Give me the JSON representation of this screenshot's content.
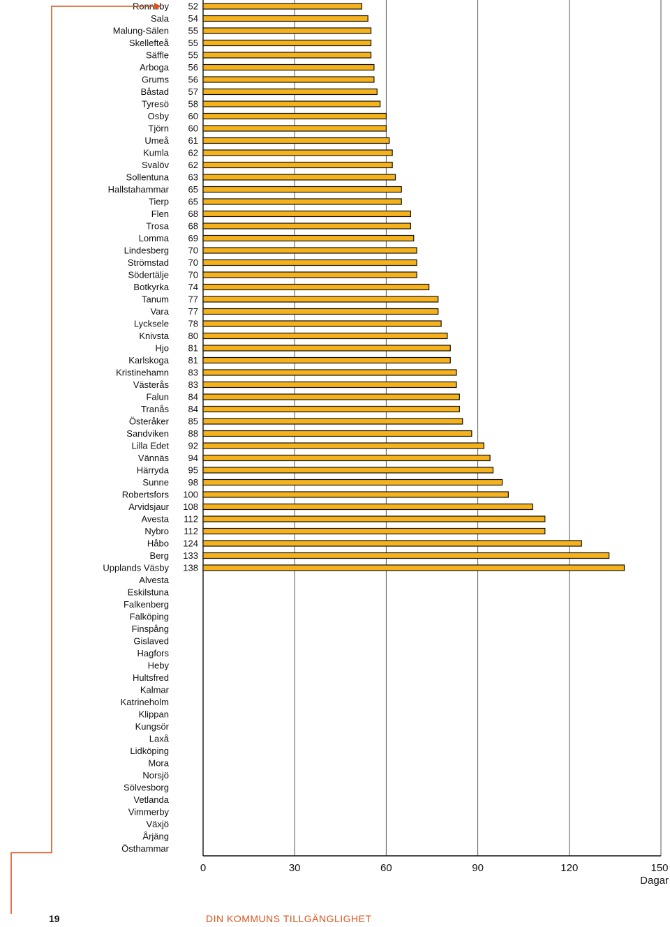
{
  "chart_data": {
    "type": "bar",
    "orientation": "horizontal",
    "categories": [
      "Ronneby",
      "Sala",
      "Malung-Sälen",
      "Skellefteå",
      "Säffle",
      "Arboga",
      "Grums",
      "Båstad",
      "Tyresö",
      "Osby",
      "Tjörn",
      "Umeå",
      "Kumla",
      "Svalöv",
      "Sollentuna",
      "Hallstahammar",
      "Tierp",
      "Flen",
      "Trosa",
      "Lomma",
      "Lindesberg",
      "Strömstad",
      "Södertälje",
      "Botkyrka",
      "Tanum",
      "Vara",
      "Lycksele",
      "Knivsta",
      "Hjo",
      "Karlskoga",
      "Kristinehamn",
      "Västerås",
      "Falun",
      "Tranås",
      "Österåker",
      "Sandviken",
      "Lilla Edet",
      "Vännäs",
      "Härryda",
      "Sunne",
      "Robertsfors",
      "Arvidsjaur",
      "Avesta",
      "Nybro",
      "Håbo",
      "Berg",
      "Upplands Väsby",
      "Alvesta",
      "Eskilstuna",
      "Falkenberg",
      "Falköping",
      "Finspång",
      "Gislaved",
      "Hagfors",
      "Heby",
      "Hultsfred",
      "Kalmar",
      "Katrineholm",
      "Klippan",
      "Kungsör",
      "Laxå",
      "Lidköping",
      "Mora",
      "Norsjö",
      "Sölvesborg",
      "Vetlanda",
      "Vimmerby",
      "Växjö",
      "Årjäng",
      "Östhammar"
    ],
    "values": [
      52,
      54,
      55,
      55,
      55,
      56,
      56,
      57,
      58,
      60,
      60,
      61,
      62,
      62,
      63,
      65,
      65,
      68,
      68,
      69,
      70,
      70,
      70,
      74,
      77,
      77,
      78,
      80,
      81,
      81,
      83,
      83,
      84,
      84,
      85,
      88,
      92,
      94,
      95,
      98,
      100,
      108,
      112,
      112,
      124,
      133,
      138,
      null,
      null,
      null,
      null,
      null,
      null,
      null,
      null,
      null,
      null,
      null,
      null,
      null,
      null,
      null,
      null,
      null,
      null,
      null,
      null,
      null,
      null,
      null
    ],
    "value_labels": [
      "52",
      "54",
      "55",
      "55",
      "55",
      "56",
      "56",
      "57",
      "58",
      "60",
      "60",
      "61",
      "62",
      "62",
      "63",
      "65",
      "65",
      "68",
      "68",
      "69",
      "70",
      "70",
      "70",
      "74",
      "77",
      "77",
      "78",
      "80",
      "81",
      "81",
      "83",
      "83",
      "84",
      "84",
      "85",
      "88",
      "92",
      "94",
      "95",
      "98",
      "100",
      "108",
      "112",
      "112",
      "124",
      "133",
      "138",
      "",
      "",
      "",
      "",
      "",
      "",
      "",
      "",
      "",
      "",
      "",
      "",
      "",
      "",
      "",
      "",
      "",
      "",
      "",
      "",
      "",
      "",
      ""
    ],
    "xlim": [
      0,
      150
    ],
    "xticks": [
      "0",
      "30",
      "60",
      "90",
      "120",
      "150"
    ],
    "xlabel": "Dagar",
    "grid": "vertical",
    "bar_color": "#f5b21b",
    "bar_edge_color": "#111111",
    "bracket_color": "#d9541e"
  },
  "footer": {
    "page_number": "19",
    "section_title": "DIN KOMMUNS TILLGÄNGLIGHET"
  },
  "colors": {
    "accent": "#d9541e",
    "bar": "#f5b21b",
    "grid": "#555555"
  }
}
